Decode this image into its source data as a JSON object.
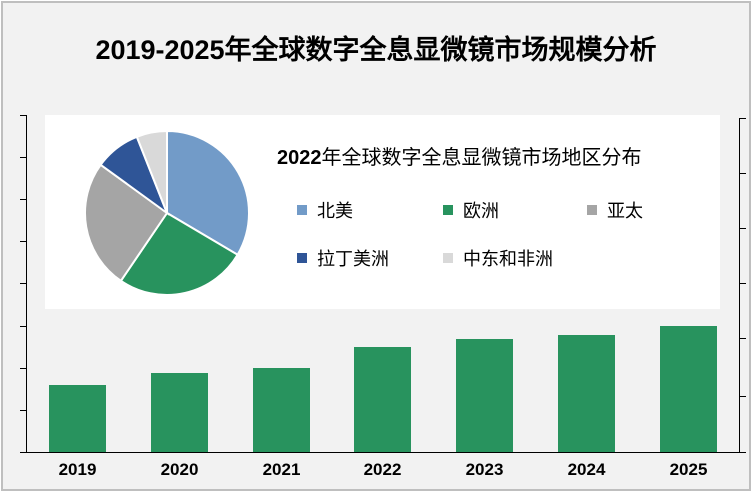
{
  "title": "2019-2025年全球数字全息显微镜市场规模分析",
  "colors": {
    "bar": "#28935e",
    "background": "#f2f2f2",
    "border": "#bfbfbf"
  },
  "inset": {
    "title_num": "2022",
    "title_text": "年全球数字全息显微镜市场地区分布",
    "legend": [
      {
        "label": "北美",
        "color": "#729bc8"
      },
      {
        "label": "欧洲",
        "color": "#28935e"
      },
      {
        "label": "亚太",
        "color": "#a5a5a5"
      },
      {
        "label": "拉丁美洲",
        "color": "#2f5597"
      },
      {
        "label": "中东和非洲",
        "color": "#d9d9d9"
      }
    ]
  },
  "x_labels": [
    "2019",
    "2020",
    "2021",
    "2022",
    "2023",
    "2024",
    "2025"
  ],
  "chart_data": [
    {
      "type": "bar",
      "title": "2019-2025年全球数字全息显微镜市场规模分析",
      "categories": [
        "2019",
        "2020",
        "2021",
        "2022",
        "2023",
        "2024",
        "2025"
      ],
      "values": [
        67,
        79,
        84,
        105,
        113,
        117,
        126
      ],
      "value_note": "Relative bar heights in px (axis has no numeric tick labels); baseline at 0",
      "xlabel": "",
      "ylabel": "",
      "y_axis_labels_visible": false,
      "left_axis_ticks": 8,
      "right_axis_ticks": 6,
      "grid": false
    },
    {
      "type": "pie",
      "title": "2022年全球数字全息显微镜市场地区分布",
      "categories": [
        "北美",
        "欧洲",
        "亚太",
        "拉丁美洲",
        "中东和非洲"
      ],
      "values": [
        33.5,
        26,
        25.5,
        9,
        6
      ],
      "value_unit": "% (estimated from slice angles)",
      "colors": [
        "#729bc8",
        "#28935e",
        "#a5a5a5",
        "#2f5597",
        "#d9d9d9"
      ],
      "legend_position": "right"
    }
  ]
}
